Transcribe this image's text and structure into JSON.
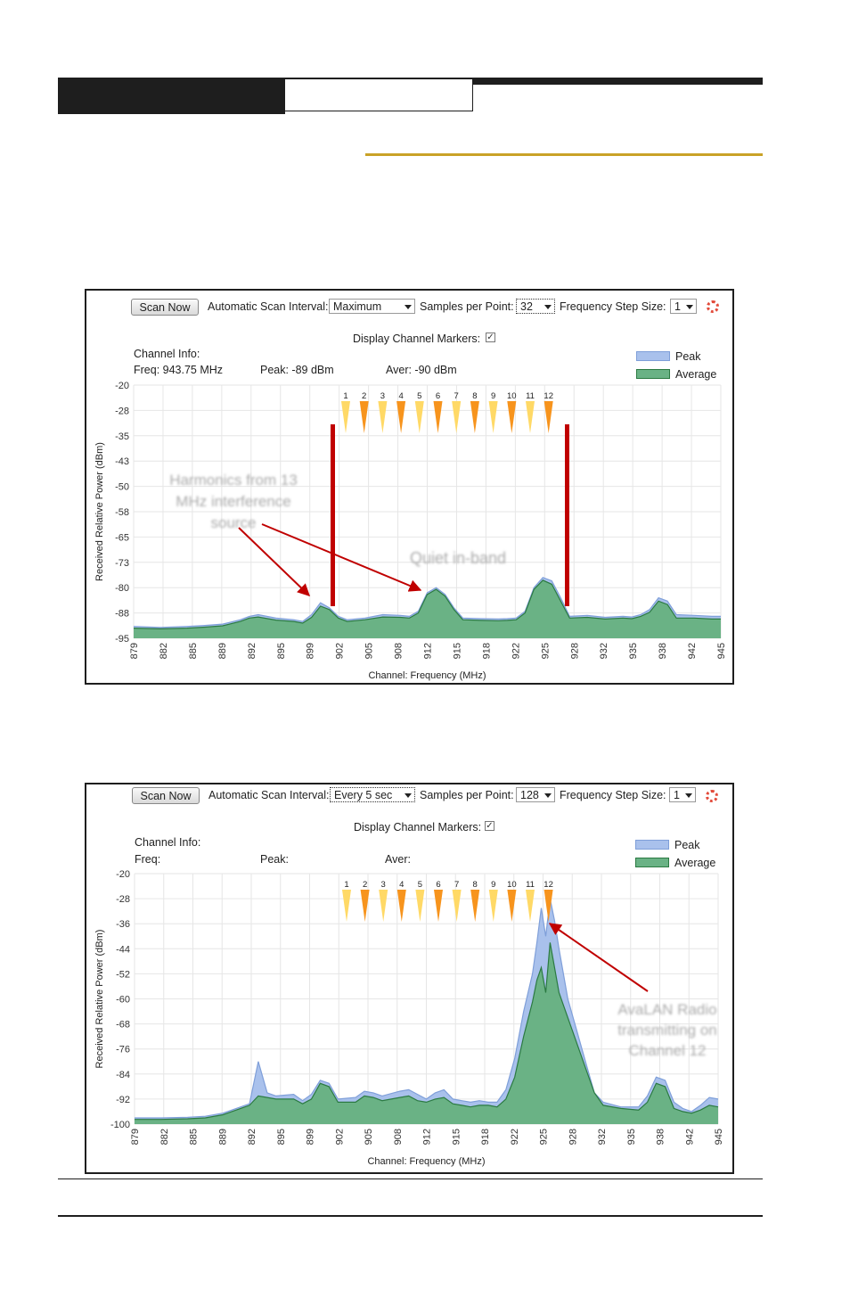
{
  "panel1": {
    "scan_now_label": "Scan Now",
    "scan_interval_label": "Automatic Scan Interval:",
    "scan_interval_value": "Maximum",
    "samples_label": "Samples per Point:",
    "samples_value": "32",
    "step_label": "Frequency Step Size:",
    "step_value": "1",
    "markers_label": "Display Channel Markers:",
    "markers_checked": "✓",
    "info_title": "Channel Info:",
    "freq_label": "Freq: 943.75 MHz",
    "peak_label": "Peak: -89 dBm",
    "aver_label": "Aver: -90 dBm",
    "legend_peak": "Peak",
    "legend_avg": "Average",
    "annotation_harmonics": [
      "Harmonics from 13",
      "MHz interference",
      "source"
    ],
    "annotation_quiet": "Quiet in-band"
  },
  "panel2": {
    "scan_now_label": "Scan Now",
    "scan_interval_label": "Automatic Scan Interval:",
    "scan_interval_value": "Every 5 sec",
    "samples_label": "Samples per Point:",
    "samples_value": "128",
    "step_label": "Frequency Step Size:",
    "step_value": "1",
    "markers_label": "Display Channel Markers:",
    "markers_checked": "✓",
    "info_title": "Channel Info:",
    "freq_label": "Freq:",
    "peak_label": "Peak:",
    "aver_label": "Aver:",
    "legend_peak": "Peak",
    "legend_avg": "Average",
    "annotation_radio": [
      "AvaLAN Radio",
      "transmitting on",
      "Channel 12"
    ]
  },
  "colors": {
    "peak_fill": "#a9c1ec",
    "peak_line": "#7f9fd9",
    "avg_fill": "#6ab285",
    "avg_line": "#2b7a42",
    "marker_yellow": "#ffd966",
    "marker_orange": "#f7941d",
    "red": "#c00000"
  },
  "chart_data": [
    {
      "type": "area",
      "xlabel": "Channel: Frequency (MHz)",
      "ylabel": "Received Relative Power (dBm)",
      "x_ticks": [
        "879",
        "882",
        "885",
        "889",
        "892",
        "895",
        "899",
        "902",
        "905",
        "908",
        "912",
        "915",
        "918",
        "922",
        "925",
        "928",
        "932",
        "935",
        "938",
        "942",
        "945"
      ],
      "y_ticks": [
        "-20",
        "-28",
        "-35",
        "-43",
        "-50",
        "-58",
        "-65",
        "-73",
        "-80",
        "-88",
        "-95"
      ],
      "xlim": [
        879,
        945
      ],
      "ylim": [
        -95,
        -20
      ],
      "grid": true,
      "legend": "top-right",
      "channel_markers": [
        "1",
        "2",
        "3",
        "4",
        "5",
        "6",
        "7",
        "8",
        "9",
        "10",
        "11",
        "12"
      ],
      "series": [
        {
          "name": "Peak",
          "x": [
            879,
            882,
            885,
            887,
            889,
            891,
            892,
            893,
            895,
            897,
            898,
            899,
            900,
            901,
            902,
            903,
            905,
            907,
            909,
            910,
            911,
            912,
            913,
            914,
            915,
            916,
            918,
            920,
            921,
            922,
            923,
            924,
            925,
            926,
            927,
            928,
            930,
            932,
            934,
            935,
            936,
            937,
            938,
            939,
            940,
            942,
            944,
            945
          ],
          "y": [
            -91.5,
            -91.8,
            -91.5,
            -91.2,
            -90.8,
            -89.5,
            -88.5,
            -88,
            -89,
            -89.5,
            -90,
            -88,
            -84.5,
            -86,
            -88.5,
            -89.5,
            -89,
            -88,
            -88.2,
            -88.5,
            -87,
            -81.5,
            -80,
            -82,
            -86,
            -89,
            -89.2,
            -89.3,
            -89.2,
            -89,
            -87,
            -80,
            -77,
            -78,
            -83,
            -88.5,
            -88.2,
            -88.8,
            -88.5,
            -88.7,
            -88,
            -86.5,
            -83,
            -84,
            -88,
            -88.2,
            -88.5,
            -88.5
          ]
        },
        {
          "name": "Average",
          "x": [
            879,
            882,
            885,
            887,
            889,
            891,
            892,
            893,
            895,
            897,
            898,
            899,
            900,
            901,
            902,
            903,
            905,
            907,
            909,
            910,
            911,
            912,
            913,
            914,
            915,
            916,
            918,
            920,
            921,
            922,
            923,
            924,
            925,
            926,
            927,
            928,
            930,
            932,
            934,
            935,
            936,
            937,
            938,
            939,
            940,
            942,
            944,
            945
          ],
          "y": [
            -92,
            -92.2,
            -92,
            -91.7,
            -91.3,
            -90,
            -89,
            -88.7,
            -89.6,
            -90,
            -90.5,
            -88.8,
            -85.5,
            -86.5,
            -89,
            -90,
            -89.5,
            -88.7,
            -88.8,
            -89,
            -87.5,
            -82,
            -80.5,
            -82.5,
            -86.5,
            -89.5,
            -89.7,
            -89.8,
            -89.7,
            -89.5,
            -87.5,
            -80.5,
            -77.8,
            -79,
            -84,
            -89,
            -88.8,
            -89.3,
            -89,
            -89.2,
            -88.5,
            -87.3,
            -84,
            -85,
            -89,
            -89,
            -89.3,
            -89.3
          ]
        }
      ]
    },
    {
      "type": "area",
      "xlabel": "Channel: Frequency (MHz)",
      "ylabel": "Received Relative Power (dBm)",
      "x_ticks": [
        "879",
        "882",
        "885",
        "889",
        "892",
        "895",
        "899",
        "902",
        "905",
        "908",
        "912",
        "915",
        "918",
        "922",
        "925",
        "928",
        "932",
        "935",
        "938",
        "942",
        "945"
      ],
      "y_ticks": [
        "-20",
        "-28",
        "-36",
        "-44",
        "-52",
        "-60",
        "-68",
        "-76",
        "-84",
        "-92",
        "-100"
      ],
      "xlim": [
        879,
        945
      ],
      "ylim": [
        -100,
        -20
      ],
      "grid": true,
      "legend": "top-right",
      "channel_markers": [
        "1",
        "2",
        "3",
        "4",
        "5",
        "6",
        "7",
        "8",
        "9",
        "10",
        "11",
        "12"
      ],
      "series": [
        {
          "name": "Peak",
          "x": [
            879,
            882,
            885,
            887,
            889,
            890,
            891,
            892,
            893,
            894,
            895,
            897,
            898,
            899,
            900,
            901,
            902,
            904,
            905,
            906,
            907,
            909,
            910,
            911,
            912,
            913,
            914,
            915,
            916,
            917,
            918,
            919,
            920,
            921,
            922,
            923,
            924,
            924.5,
            925,
            925.5,
            926,
            926.5,
            927,
            928,
            929,
            930,
            931,
            932,
            934,
            936,
            937,
            938,
            939,
            940,
            941,
            942,
            943,
            944,
            945
          ],
          "y": [
            -98,
            -98,
            -97.8,
            -97.5,
            -96.5,
            -95.5,
            -94.5,
            -93.5,
            -80,
            -90,
            -91,
            -90.5,
            -92.5,
            -90.5,
            -86,
            -87,
            -92,
            -91.5,
            -89.5,
            -90,
            -91,
            -89.5,
            -89,
            -90.5,
            -92,
            -90,
            -89,
            -92,
            -92.5,
            -93,
            -92.5,
            -93,
            -93,
            -89,
            -79,
            -64,
            -52,
            -42,
            -31,
            -40,
            -28,
            -35,
            -44,
            -60,
            -70,
            -80,
            -90,
            -93,
            -94.5,
            -94.5,
            -91,
            -85,
            -86,
            -93,
            -95,
            -96,
            -94,
            -91.5,
            -92
          ]
        },
        {
          "name": "Average",
          "x": [
            879,
            882,
            885,
            887,
            889,
            890,
            891,
            892,
            893,
            894,
            895,
            897,
            898,
            899,
            900,
            901,
            902,
            904,
            905,
            906,
            907,
            909,
            910,
            911,
            912,
            913,
            914,
            915,
            916,
            917,
            918,
            919,
            920,
            921,
            922,
            923,
            924,
            924.5,
            925,
            925.5,
            926,
            926.5,
            927,
            928,
            929,
            930,
            931,
            932,
            934,
            936,
            937,
            938,
            939,
            940,
            941,
            942,
            943,
            944,
            945
          ],
          "y": [
            -98.5,
            -98.5,
            -98.3,
            -98,
            -97,
            -96,
            -95,
            -94,
            -91,
            -91.5,
            -92,
            -92,
            -93.5,
            -92,
            -87,
            -88,
            -93,
            -93,
            -91,
            -91.5,
            -92.5,
            -91.5,
            -91,
            -92.5,
            -93,
            -92,
            -91.5,
            -93.5,
            -94,
            -94.5,
            -94,
            -94,
            -94.5,
            -92,
            -85,
            -72,
            -61,
            -54,
            -50,
            -58,
            -42,
            -50,
            -58,
            -66,
            -74,
            -82,
            -90,
            -94,
            -95,
            -95.5,
            -93,
            -87,
            -88,
            -95,
            -96,
            -96.5,
            -95.5,
            -94,
            -94.5
          ]
        }
      ]
    }
  ]
}
